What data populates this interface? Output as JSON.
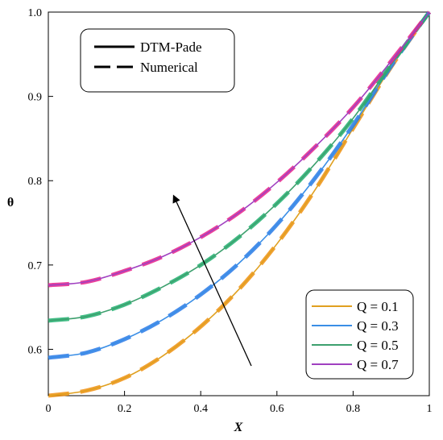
{
  "chart_data": {
    "type": "line",
    "xlabel": "X",
    "ylabel": "θ",
    "xlim": [
      0,
      1
    ],
    "ylim": [
      0.545,
      1.0
    ],
    "x_ticks": [
      "0",
      "0.2",
      "0.4",
      "0.6",
      "0.8",
      "1"
    ],
    "y_ticks": [
      "0.6",
      "0.7",
      "0.8",
      "0.9",
      "1.0"
    ],
    "grid": false,
    "style_legend": {
      "placement": "top-left",
      "entries": [
        {
          "label": "DTM-Pade",
          "style": "solid"
        },
        {
          "label": "Numerical",
          "style": "dashed"
        }
      ]
    },
    "series_legend": {
      "placement": "bottom-right"
    },
    "annotation": "arrow indicating increasing Q",
    "x": [
      0,
      0.1,
      0.2,
      0.3,
      0.4,
      0.5,
      0.6,
      0.7,
      0.8,
      0.9,
      1.0
    ],
    "series": [
      {
        "name": "Q = 0.1",
        "color": "#E0A020",
        "values": [
          0.545,
          0.551,
          0.566,
          0.592,
          0.627,
          0.671,
          0.725,
          0.789,
          0.862,
          0.935,
          1.0
        ]
      },
      {
        "name": "Q = 0.3",
        "color": "#3A8EE6",
        "values": [
          0.59,
          0.596,
          0.612,
          0.635,
          0.665,
          0.702,
          0.748,
          0.803,
          0.866,
          0.936,
          1.0
        ]
      },
      {
        "name": "Q = 0.5",
        "color": "#3DA06E",
        "values": [
          0.634,
          0.639,
          0.653,
          0.674,
          0.7,
          0.733,
          0.773,
          0.82,
          0.874,
          0.938,
          1.0
        ]
      },
      {
        "name": "Q = 0.7",
        "color": "#A040C0",
        "values": [
          0.676,
          0.68,
          0.693,
          0.71,
          0.733,
          0.762,
          0.798,
          0.84,
          0.887,
          0.942,
          1.0
        ]
      }
    ],
    "numerical_colors": [
      "#F09010",
      "#2A7AE8",
      "#20B070",
      "#E8208A"
    ]
  }
}
